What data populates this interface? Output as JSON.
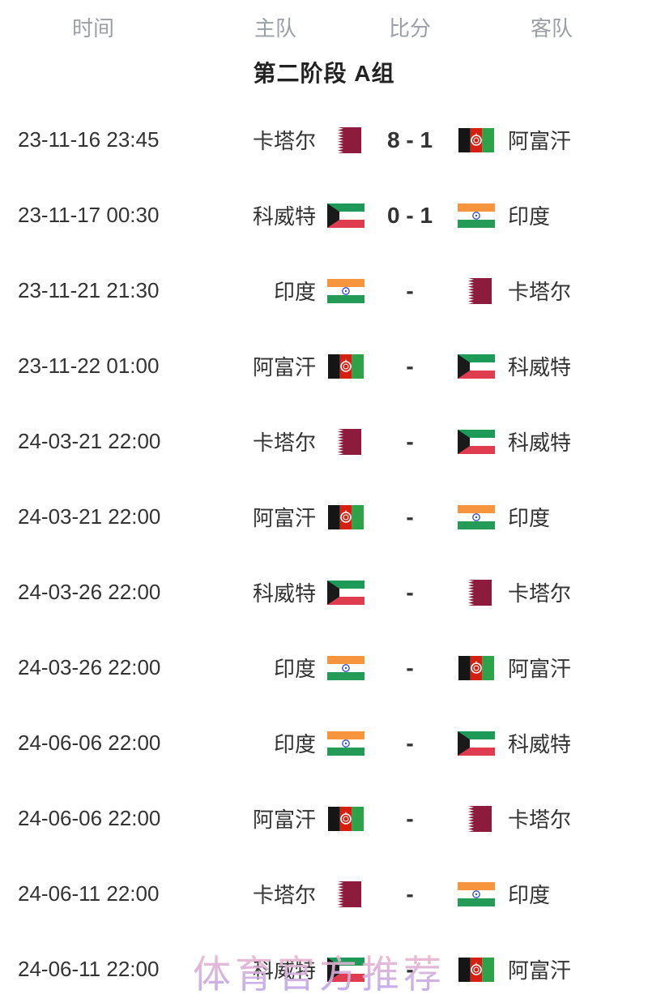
{
  "header": {
    "columns": [
      "时间",
      "主队",
      "比分",
      "客队"
    ]
  },
  "group_title": "第二阶段 A组",
  "teams": {
    "qatar": {
      "name": "卡塔尔",
      "flag_icon": "qatar-flag-icon"
    },
    "afghanistan": {
      "name": "阿富汗",
      "flag_icon": "afghanistan-flag-icon"
    },
    "kuwait": {
      "name": "科威特",
      "flag_icon": "kuwait-flag-icon"
    },
    "india": {
      "name": "印度",
      "flag_icon": "india-flag-icon"
    }
  },
  "matches": [
    {
      "time": "23-11-16 23:45",
      "home": "qatar",
      "score": "8 - 1",
      "away": "afghanistan"
    },
    {
      "time": "23-11-17 00:30",
      "home": "kuwait",
      "score": "0 - 1",
      "away": "india"
    },
    {
      "time": "23-11-21 21:30",
      "home": "india",
      "score": "-",
      "away": "qatar"
    },
    {
      "time": "23-11-22 01:00",
      "home": "afghanistan",
      "score": "-",
      "away": "kuwait"
    },
    {
      "time": "24-03-21 22:00",
      "home": "qatar",
      "score": "-",
      "away": "kuwait"
    },
    {
      "time": "24-03-21 22:00",
      "home": "afghanistan",
      "score": "-",
      "away": "india"
    },
    {
      "time": "24-03-26 22:00",
      "home": "kuwait",
      "score": "-",
      "away": "qatar"
    },
    {
      "time": "24-03-26 22:00",
      "home": "india",
      "score": "-",
      "away": "afghanistan"
    },
    {
      "time": "24-06-06 22:00",
      "home": "india",
      "score": "-",
      "away": "kuwait"
    },
    {
      "time": "24-06-06 22:00",
      "home": "afghanistan",
      "score": "-",
      "away": "qatar"
    },
    {
      "time": "24-06-11 22:00",
      "home": "qatar",
      "score": "-",
      "away": "india"
    },
    {
      "time": "24-06-11 22:00",
      "home": "kuwait",
      "score": "-",
      "away": "afghanistan"
    }
  ],
  "watermark": "体育官方推荐",
  "colors": {
    "text_primary": "#333333",
    "header_text": "#9b9fa6",
    "title_text": "#222222",
    "qatar_maroon": "#8d1b3d",
    "afghan_black": "#151515",
    "afghan_red": "#d32011",
    "afghan_green": "#2fa148",
    "kuwait_green": "#1d9a57",
    "kuwait_red": "#e03c4f",
    "kuwait_black": "#1a1a1a",
    "india_saffron": "#f6953e",
    "india_green": "#259b58",
    "india_navy": "#2b4bcf",
    "watermark_pink": "#f2b7c9",
    "watermark_purple": "#b9a5ec"
  }
}
